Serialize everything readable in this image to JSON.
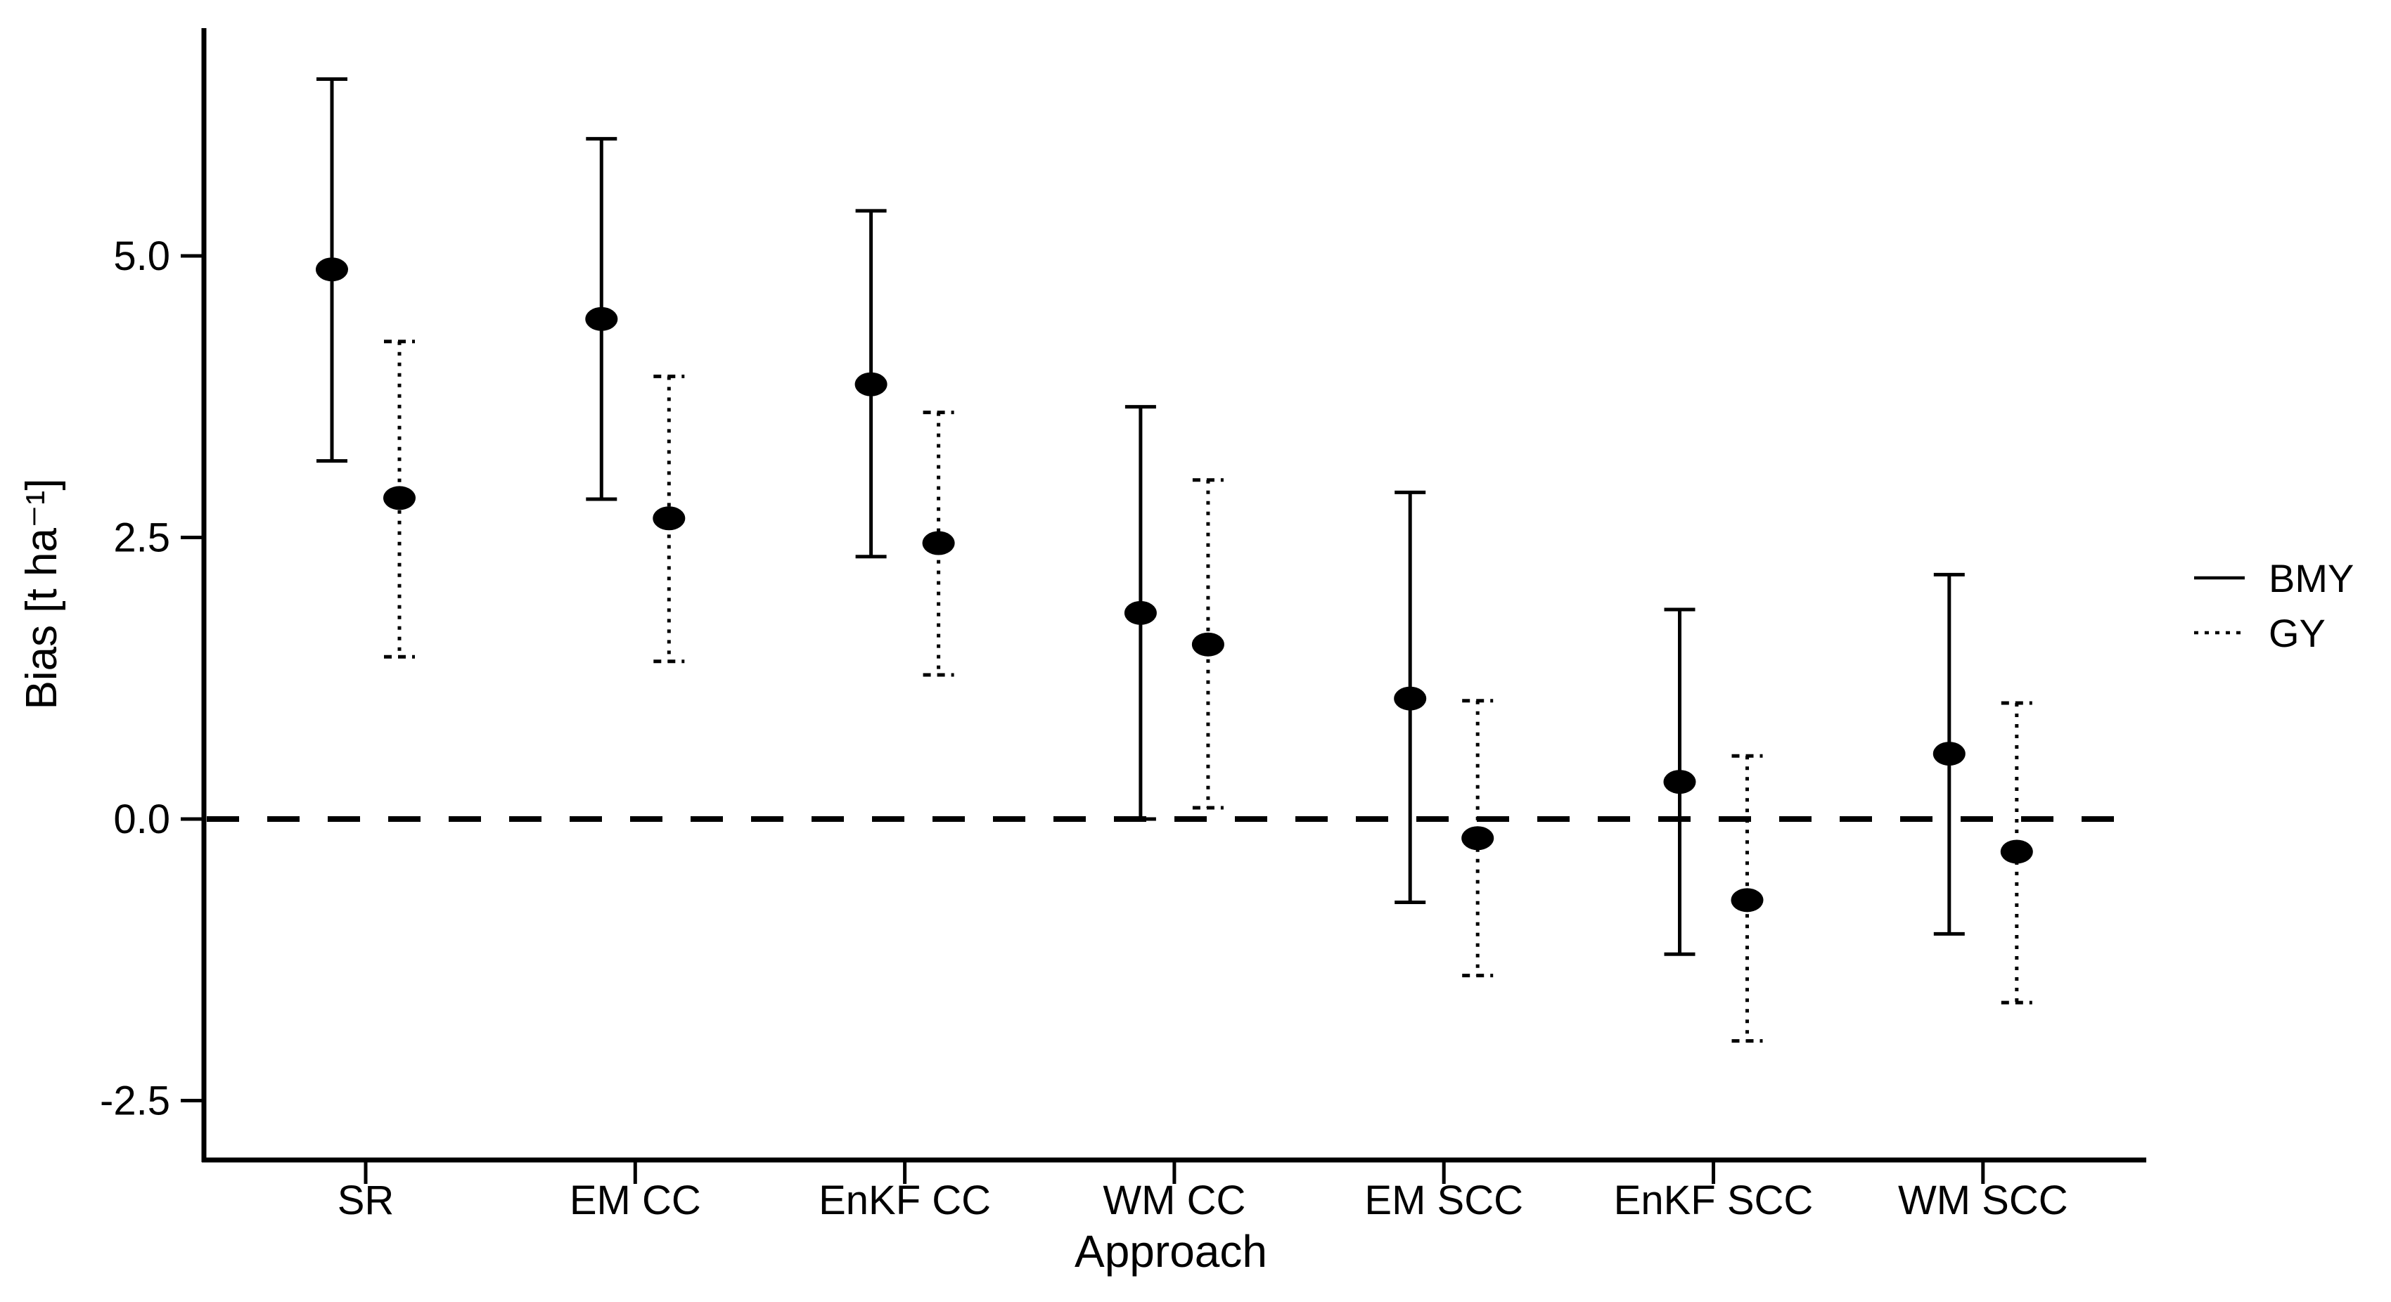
{
  "figure": {
    "background": "#ffffff",
    "ink_color": "#000000"
  },
  "chart_data": {
    "type": "pointrange",
    "title": "",
    "xlabel": "Approach",
    "ylabel": "Bias [t ha⁻¹]",
    "categories": [
      "SR",
      "EM CC",
      "EnKF CC",
      "WM CC",
      "EM SCC",
      "EnKF SCC",
      "WM SCC"
    ],
    "y_ticks": [
      {
        "value": 5.0,
        "label": "5.0"
      },
      {
        "value": 2.5,
        "label": "2.5"
      },
      {
        "value": 0.0,
        "label": "0.0"
      },
      {
        "value": -2.5,
        "label": "-2.5"
      }
    ],
    "ylim": [
      -3.05,
      7.05
    ],
    "grid": "off",
    "legend_position": "right",
    "reference_line": {
      "y": 0.0,
      "style": "dashed"
    },
    "series": [
      {
        "name": "BMY",
        "line_style": "solid",
        "points": [
          {
            "category": "SR",
            "mean": 4.88,
            "lo": 3.18,
            "hi": 6.57
          },
          {
            "category": "EM CC",
            "mean": 4.44,
            "lo": 2.84,
            "hi": 6.04
          },
          {
            "category": "EnKF CC",
            "mean": 3.86,
            "lo": 2.33,
            "hi": 5.4
          },
          {
            "category": "WM CC",
            "mean": 1.83,
            "lo": 0.0,
            "hi": 3.66
          },
          {
            "category": "EM SCC",
            "mean": 1.07,
            "lo": -0.74,
            "hi": 2.9
          },
          {
            "category": "EnKF SCC",
            "mean": 0.33,
            "lo": -1.2,
            "hi": 1.86
          },
          {
            "category": "WM SCC",
            "mean": 0.58,
            "lo": -1.02,
            "hi": 2.17
          }
        ]
      },
      {
        "name": "GY",
        "line_style": "dotted",
        "points": [
          {
            "category": "SR",
            "mean": 2.85,
            "lo": 1.44,
            "hi": 4.24
          },
          {
            "category": "EM CC",
            "mean": 2.67,
            "lo": 1.4,
            "hi": 3.93
          },
          {
            "category": "EnKF CC",
            "mean": 2.45,
            "lo": 1.28,
            "hi": 3.61
          },
          {
            "category": "WM CC",
            "mean": 1.55,
            "lo": 0.1,
            "hi": 3.01
          },
          {
            "category": "EM SCC",
            "mean": -0.17,
            "lo": -1.39,
            "hi": 1.05
          },
          {
            "category": "EnKF SCC",
            "mean": -0.72,
            "lo": -1.97,
            "hi": 0.56
          },
          {
            "category": "WM SCC",
            "mean": -0.29,
            "lo": -1.63,
            "hi": 1.03
          }
        ]
      }
    ]
  },
  "legend": {
    "items": [
      {
        "label": "BMY",
        "line_style": "solid"
      },
      {
        "label": "GY",
        "line_style": "dotted"
      }
    ]
  }
}
